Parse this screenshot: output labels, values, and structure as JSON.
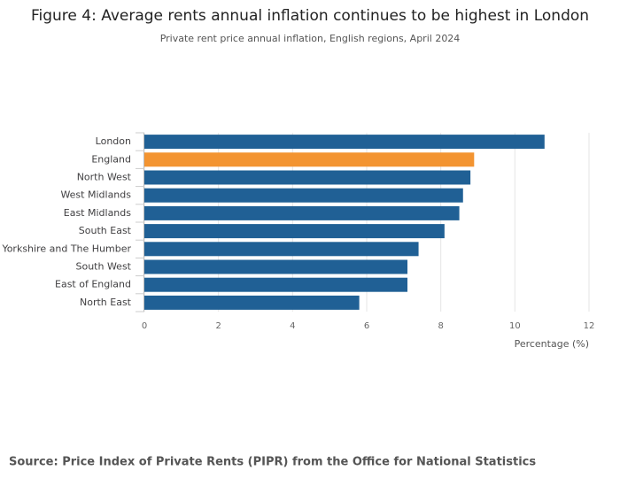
{
  "chart_data": {
    "type": "barh",
    "title": "Figure 4: Average rents annual inflation continues to be highest in London",
    "subtitle": "Private rent price annual inflation, English regions, April 2024",
    "categories": [
      "London",
      "England",
      "North West",
      "West Midlands",
      "East Midlands",
      "South East",
      "Yorkshire and The Humber",
      "South West",
      "East of England",
      "North East"
    ],
    "values": [
      10.8,
      8.9,
      8.8,
      8.6,
      8.5,
      8.1,
      7.4,
      7.1,
      7.1,
      5.8
    ],
    "colors": [
      "#206095",
      "#f39431",
      "#206095",
      "#206095",
      "#206095",
      "#206095",
      "#206095",
      "#206095",
      "#206095",
      "#206095"
    ],
    "xlim": [
      0,
      12
    ],
    "xticks": [
      0,
      2,
      4,
      6,
      8,
      10,
      12
    ],
    "grid": true,
    "xlabel": "Percentage (%)"
  },
  "source": "Source: Price Index of Private Rents (PIPR) from the Office for National Statistics"
}
